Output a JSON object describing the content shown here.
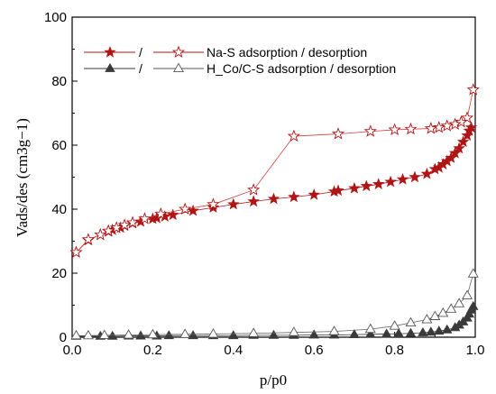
{
  "chart_data": {
    "type": "scatter",
    "xlabel": "p/p0",
    "ylabel": "Vads/des (cm3g−1)",
    "xlim": [
      0.0,
      1.0
    ],
    "ylim": [
      0,
      100
    ],
    "xticks": [
      "0.0",
      "0.2",
      "0.4",
      "0.6",
      "0.8",
      "1.0"
    ],
    "yticks": [
      "0",
      "20",
      "40",
      "60",
      "80",
      "100"
    ],
    "grid": false,
    "legend_position": "top-left",
    "legend": [
      {
        "text": "Na-S adsorption / desorption",
        "separator": "/"
      },
      {
        "text": "H_Co/C-S adsorption / desorption",
        "separator": "/"
      }
    ],
    "series": [
      {
        "name": "Na-S adsorption",
        "marker": "filled-star",
        "color": "#b01515",
        "points": [
          [
            0.01,
            26.5
          ],
          [
            0.04,
            30.3
          ],
          [
            0.07,
            32.0
          ],
          [
            0.09,
            33.0
          ],
          [
            0.1,
            33.5
          ],
          [
            0.12,
            34.2
          ],
          [
            0.13,
            34.8
          ],
          [
            0.15,
            35.6
          ],
          [
            0.17,
            36.1
          ],
          [
            0.2,
            37.0
          ],
          [
            0.21,
            37.2
          ],
          [
            0.23,
            37.7
          ],
          [
            0.25,
            38.2
          ],
          [
            0.3,
            39.5
          ],
          [
            0.35,
            40.5
          ],
          [
            0.4,
            41.5
          ],
          [
            0.45,
            42.4
          ],
          [
            0.5,
            43.2
          ],
          [
            0.55,
            43.8
          ],
          [
            0.6,
            44.5
          ],
          [
            0.65,
            45.5
          ],
          [
            0.66,
            45.8
          ],
          [
            0.7,
            46.5
          ],
          [
            0.73,
            47.2
          ],
          [
            0.76,
            47.8
          ],
          [
            0.79,
            48.5
          ],
          [
            0.82,
            49.3
          ],
          [
            0.85,
            50.0
          ],
          [
            0.88,
            51.0
          ],
          [
            0.9,
            52.5
          ],
          [
            0.91,
            53.0
          ],
          [
            0.92,
            54.0
          ],
          [
            0.93,
            55.0
          ],
          [
            0.94,
            56.0
          ],
          [
            0.95,
            57.5
          ],
          [
            0.96,
            59.0
          ],
          [
            0.97,
            61.0
          ],
          [
            0.98,
            63.0
          ],
          [
            0.985,
            64.5
          ],
          [
            0.99,
            65.5
          ]
        ]
      },
      {
        "name": "Na-S desorption",
        "marker": "open-star",
        "color": "#b01515",
        "points": [
          [
            0.995,
            77.3
          ],
          [
            0.98,
            68.5
          ],
          [
            0.965,
            67.2
          ],
          [
            0.95,
            66.5
          ],
          [
            0.93,
            66.0
          ],
          [
            0.91,
            65.5
          ],
          [
            0.89,
            65.2
          ],
          [
            0.84,
            65.0
          ],
          [
            0.8,
            64.8
          ],
          [
            0.74,
            64.3
          ],
          [
            0.66,
            63.5
          ],
          [
            0.55,
            62.8
          ],
          [
            0.45,
            46.0
          ],
          [
            0.35,
            41.5
          ],
          [
            0.28,
            40.0
          ],
          [
            0.22,
            38.5
          ],
          [
            0.18,
            37.0
          ],
          [
            0.15,
            35.8
          ],
          [
            0.13,
            35.0
          ],
          [
            0.11,
            34.2
          ],
          [
            0.09,
            33.2
          ],
          [
            0.07,
            32.0
          ],
          [
            0.04,
            30.5
          ],
          [
            0.01,
            26.5
          ]
        ]
      },
      {
        "name": "H_Co/C-S adsorption",
        "marker": "filled-triangle",
        "color": "#3a3a3a",
        "points": [
          [
            0.01,
            0.3
          ],
          [
            0.07,
            0.3
          ],
          [
            0.1,
            0.3
          ],
          [
            0.14,
            0.4
          ],
          [
            0.17,
            0.4
          ],
          [
            0.21,
            0.4
          ],
          [
            0.24,
            0.5
          ],
          [
            0.3,
            0.5
          ],
          [
            0.35,
            0.5
          ],
          [
            0.4,
            0.5
          ],
          [
            0.45,
            0.6
          ],
          [
            0.5,
            0.6
          ],
          [
            0.55,
            0.6
          ],
          [
            0.6,
            0.7
          ],
          [
            0.65,
            0.7
          ],
          [
            0.7,
            0.8
          ],
          [
            0.74,
            0.9
          ],
          [
            0.78,
            1.0
          ],
          [
            0.81,
            1.1
          ],
          [
            0.84,
            1.2
          ],
          [
            0.87,
            1.4
          ],
          [
            0.89,
            1.6
          ],
          [
            0.91,
            1.9
          ],
          [
            0.93,
            2.3
          ],
          [
            0.95,
            3.0
          ],
          [
            0.96,
            3.8
          ],
          [
            0.97,
            4.8
          ],
          [
            0.98,
            6.0
          ],
          [
            0.985,
            7.2
          ],
          [
            0.99,
            8.5
          ],
          [
            0.995,
            9.6
          ]
        ]
      },
      {
        "name": "H_Co/C-S desorption",
        "marker": "open-triangle",
        "color": "#555555",
        "points": [
          [
            0.995,
            19.8
          ],
          [
            0.98,
            13.0
          ],
          [
            0.96,
            10.5
          ],
          [
            0.94,
            8.8
          ],
          [
            0.92,
            7.5
          ],
          [
            0.9,
            6.5
          ],
          [
            0.88,
            5.5
          ],
          [
            0.84,
            4.5
          ],
          [
            0.8,
            3.5
          ],
          [
            0.74,
            2.5
          ],
          [
            0.65,
            1.8
          ],
          [
            0.55,
            1.5
          ],
          [
            0.45,
            1.2
          ],
          [
            0.35,
            1.0
          ],
          [
            0.28,
            0.9
          ],
          [
            0.2,
            0.8
          ],
          [
            0.14,
            0.7
          ],
          [
            0.08,
            0.6
          ],
          [
            0.04,
            0.5
          ],
          [
            0.01,
            0.5
          ]
        ]
      }
    ]
  }
}
